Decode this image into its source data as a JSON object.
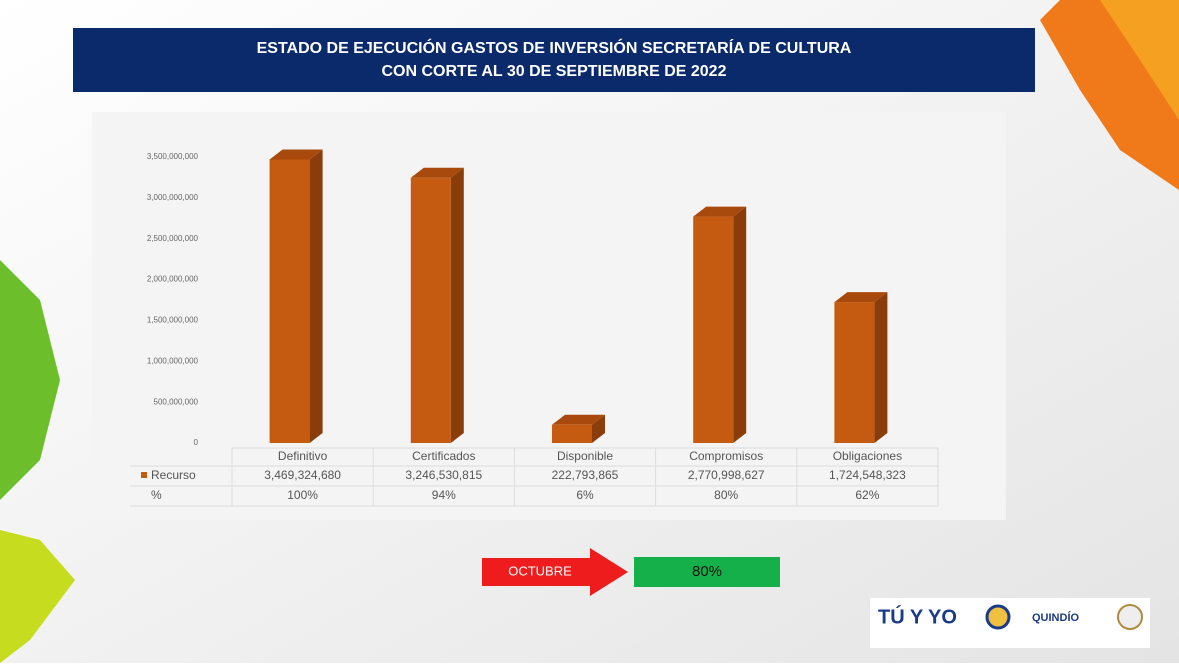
{
  "chart_data": {
    "type": "bar3d",
    "title": [
      "ESTADO DE EJECUCIÓN GASTOS DE INVERSIÓN SECRETARÍA DE CULTURA",
      "CON  CORTE AL 30 DE SEPTIEMBRE DE 2022"
    ],
    "categories": [
      "Definitivo",
      "Certificados",
      "Disponible",
      "Compromisos",
      "Obligaciones"
    ],
    "series": [
      {
        "name": "Recurso",
        "color": "#c55a11",
        "values": [
          3469324680,
          3246530815,
          222793865,
          2770998627,
          1724548323
        ],
        "value_labels": [
          "3,469,324,680",
          "3,246,530,815",
          "222,793,865",
          "2,770,998,627",
          "1,724,548,323"
        ]
      }
    ],
    "percent_row": {
      "name": "%",
      "values": [
        100,
        94,
        6,
        80,
        62
      ],
      "value_labels": [
        "100%",
        "94%",
        "6%",
        "80%",
        "62%"
      ]
    },
    "ylim": [
      0,
      3500000000
    ],
    "yticks": [
      0,
      {
        "value": 500000000,
        "label": "500,000,000"
      },
      {
        "value": 1000000000,
        "label": "1,000,000,000"
      },
      {
        "value": 1500000000,
        "label": "1,500,000,000"
      },
      {
        "value": 2000000000,
        "label": "2,000,000,000"
      },
      {
        "value": 2500000000,
        "label": "2,500,000,000"
      },
      {
        "value": 3000000000,
        "label": "3,000,000,000"
      },
      {
        "value": 3500000000,
        "label": "3,500,000,000"
      }
    ],
    "indicator": {
      "label": "OCTUBRE",
      "value": 80,
      "value_label": "80%"
    },
    "logos": [
      "TÚ Y YO",
      "QUINDÍO"
    ]
  }
}
